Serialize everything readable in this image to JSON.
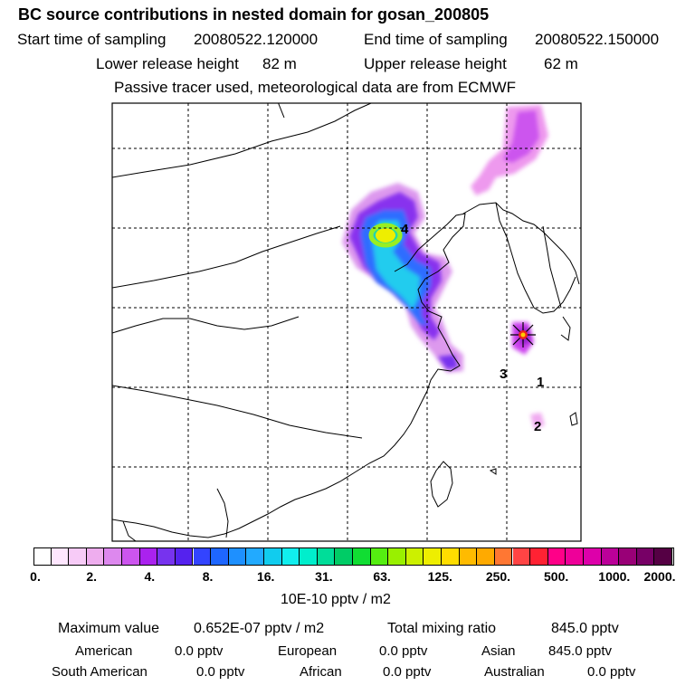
{
  "title": "BC  source contributions in nested domain for gosan_200805",
  "start_label": "Start time of sampling",
  "start_value": "20080522.120000",
  "end_label": "End time of sampling",
  "end_value": "20080522.150000",
  "lower_label": "Lower release height",
  "lower_value": "82 m",
  "upper_label": "Upper release height",
  "upper_value": "62 m",
  "tracer_note": "Passive tracer used, meteorological data are from ECMWF",
  "map_labels": {
    "l1": "1",
    "l2": "2",
    "l3": "3",
    "l4": "4"
  },
  "colorbar": {
    "ticks": [
      "0.",
      "2.",
      "4.",
      "8.",
      "16.",
      "31.",
      "63.",
      "125.",
      "250.",
      "500.",
      "1000.",
      "2000."
    ],
    "colors": [
      "#ffffff",
      "#ffe6ff",
      "#f7cbf7",
      "#eeadee",
      "#dd88ee",
      "#cc55ee",
      "#aa22ee",
      "#7733ee",
      "#5522ee",
      "#3344ff",
      "#1e66ff",
      "#1e90ff",
      "#22aaff",
      "#11ccee",
      "#11eeee",
      "#00eecc",
      "#00dd99",
      "#00cc66",
      "#11dd33",
      "#55ee11",
      "#99f000",
      "#ccf000",
      "#eeee00",
      "#ffdd00",
      "#ffbb00",
      "#ffaa00",
      "#ff7733",
      "#ff4444",
      "#ff2233",
      "#ff0088",
      "#ee0099",
      "#dd00aa",
      "#bb0099",
      "#990077",
      "#770066",
      "#550044"
    ],
    "unit": "10E-10 pptv / m2"
  },
  "stats": {
    "max_label": "Maximum value",
    "max_value": "0.652E-07 pptv / m2",
    "total_label": "Total mixing ratio",
    "total_value": "845.0 pptv",
    "american_label": "American",
    "american_value": "0.0 pptv",
    "european_label": "European",
    "european_value": "0.0 pptv",
    "asian_label": "Asian",
    "asian_value": "845.0 pptv",
    "south_american_label": "South American",
    "south_american_value": "0.0 pptv",
    "african_label": "African",
    "african_value": "0.0 pptv",
    "australian_label": "Australian",
    "australian_value": "0.0 pptv"
  }
}
